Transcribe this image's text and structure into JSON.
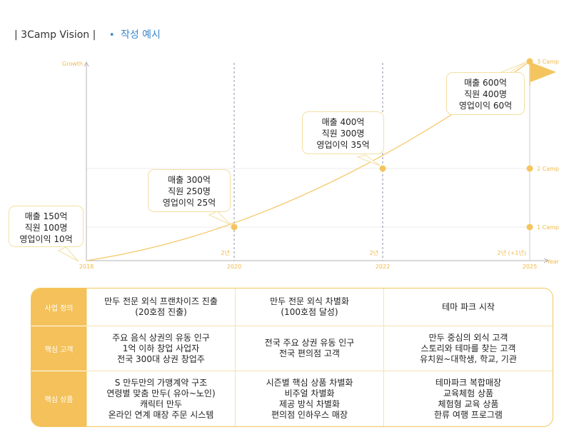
{
  "header": {
    "title": "| 3Camp Vision |",
    "bullet": "•",
    "subtitle": "작성 예시"
  },
  "axis": {
    "y_label": "Growth",
    "x_label": "Year"
  },
  "years": [
    "2018",
    "2020",
    "2022",
    "2025"
  ],
  "intervals": [
    "2년",
    "2년",
    "2년 (+1년)"
  ],
  "camps": [
    "1 Camp",
    "2 Camp",
    "3 Camp"
  ],
  "bubbles": [
    {
      "lines": [
        "매출 150억",
        "직원 100명",
        "영업이익 10억"
      ]
    },
    {
      "lines": [
        "매출 300억",
        "직원 250명",
        "영업이익 25억"
      ]
    },
    {
      "lines": [
        "매출 400억",
        "직원 300명",
        "영업이익 35억"
      ]
    },
    {
      "lines": [
        "매출 600억",
        "직원 400명",
        "영업이익 60억"
      ]
    }
  ],
  "table": {
    "rows": [
      {
        "label": "사업 정의",
        "cells": [
          [
            "만두 전문 외식 프랜차이즈 진출",
            "(20호점 진출)"
          ],
          [
            "만두 전문 외식 차별화",
            "(100호점 달성)"
          ],
          [
            "테마 파크 시작"
          ]
        ]
      },
      {
        "label": "핵심 고객",
        "cells": [
          [
            "주요 음식 상권의 유동 인구",
            "1억 이하 창업 사업자",
            "전국 300대 상권 창업주"
          ],
          [
            "전국 주요 상권 유동 인구",
            "전국 편의점 고객"
          ],
          [
            "만두 중심의 외식 고객",
            "스토리와 테마를 찾는 고객",
            "유치원~대학생, 학교, 기관"
          ]
        ]
      },
      {
        "label": "핵심 상품",
        "cells": [
          [
            "S 만두만의 가맹계약 구조",
            "연령별 맞춤 만두( 유아~노인)",
            "캐릭터 만두",
            "온라인 연계 매장 주문 시스템"
          ],
          [
            "시즌별 핵심 상품 차별화",
            "비주얼 차별화",
            "제공 방식 차별화",
            "편의점 인하우스 매장"
          ],
          [
            "테마파크 복합매장",
            "교육체험 상품",
            "체험형 교육 상품",
            "한류 여행 프로그램"
          ]
        ]
      }
    ]
  }
}
